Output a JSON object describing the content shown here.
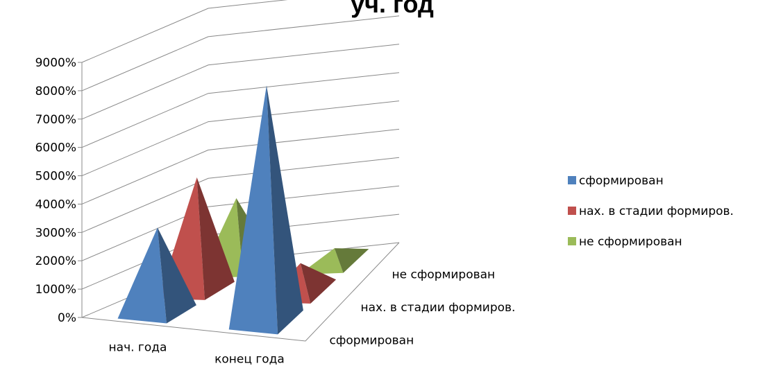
{
  "chart_data": {
    "type": "pyramid3d",
    "title": "уч. год",
    "categories": [
      "нач. года",
      "конец года"
    ],
    "series": [
      {
        "name": "сформирован",
        "color": "#4f81bd",
        "values": [
          3000,
          8300
        ]
      },
      {
        "name": "нах. в стадии формиров.",
        "color": "#c0504d",
        "values": [
          4000,
          1000
        ]
      },
      {
        "name": "не сформирован",
        "color": "#9bbb59",
        "values": [
          2500,
          500
        ]
      }
    ],
    "ylim": [
      0,
      9000
    ],
    "yticks": [
      {
        "value": 0,
        "label": "0%"
      },
      {
        "value": 1000,
        "label": "1000%"
      },
      {
        "value": 2000,
        "label": "2000%"
      },
      {
        "value": 3000,
        "label": "3000%"
      },
      {
        "value": 4000,
        "label": "4000%"
      },
      {
        "value": 5000,
        "label": "5000%"
      },
      {
        "value": 6000,
        "label": "6000%"
      },
      {
        "value": 7000,
        "label": "7000%"
      },
      {
        "value": 8000,
        "label": "8000%"
      },
      {
        "value": 9000,
        "label": "9000%"
      }
    ],
    "grid": true,
    "legend": "right"
  }
}
